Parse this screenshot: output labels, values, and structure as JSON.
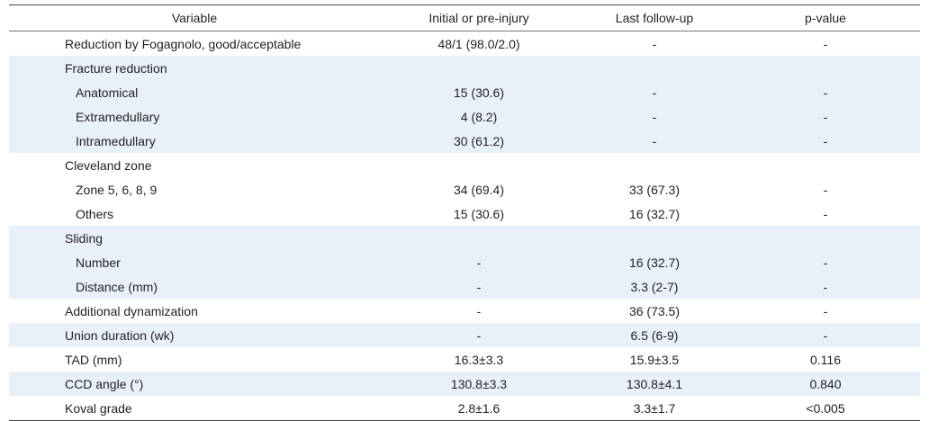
{
  "headers": [
    "Variable",
    "Initial or pre-injury",
    "Last follow-up",
    "p-value"
  ],
  "rows": [
    {
      "label": "Reduction by Fogagnolo, good/acceptable",
      "c1": "48/1 (98.0/2.0)",
      "c2": "-",
      "c3": "-"
    },
    {
      "label": "Fracture reduction",
      "c1": "",
      "c2": "",
      "c3": ""
    },
    {
      "label": "Anatomical",
      "c1": "15 (30.6)",
      "c2": "-",
      "c3": "-"
    },
    {
      "label": "Extramedullary",
      "c1": "4 (8.2)",
      "c2": "-",
      "c3": "-"
    },
    {
      "label": "Intramedullary",
      "c1": "30 (61.2)",
      "c2": "-",
      "c3": "-"
    },
    {
      "label": "Cleveland zone",
      "c1": "",
      "c2": "",
      "c3": ""
    },
    {
      "label": "Zone 5, 6, 8, 9",
      "c1": "34 (69.4)",
      "c2": "33 (67.3)",
      "c3": "-"
    },
    {
      "label": "Others",
      "c1": "15 (30.6)",
      "c2": "16 (32.7)",
      "c3": "-"
    },
    {
      "label": "Sliding",
      "c1": "",
      "c2": "",
      "c3": ""
    },
    {
      "label": "Number",
      "c1": "-",
      "c2": "16 (32.7)",
      "c3": "-"
    },
    {
      "label": "Distance (mm)",
      "c1": "-",
      "c2": "3.3 (2-7)",
      "c3": "-"
    },
    {
      "label": "Additional dynamization",
      "c1": "-",
      "c2": "36 (73.5)",
      "c3": "-"
    },
    {
      "label": "Union duration (wk)",
      "c1": "-",
      "c2": "6.5 (6-9)",
      "c3": "-"
    },
    {
      "label": "TAD (mm)",
      "c1": "16.3±3.3",
      "c2": "15.9±3.5",
      "c3": "0.116"
    },
    {
      "label": "CCD angle (°)",
      "c1": "130.8±3.3",
      "c2": "130.8±4.1",
      "c3": "0.840"
    },
    {
      "label": "Koval grade",
      "c1": "2.8±1.6",
      "c2": "3.3±1.7",
      "c3": "<0.005"
    }
  ]
}
